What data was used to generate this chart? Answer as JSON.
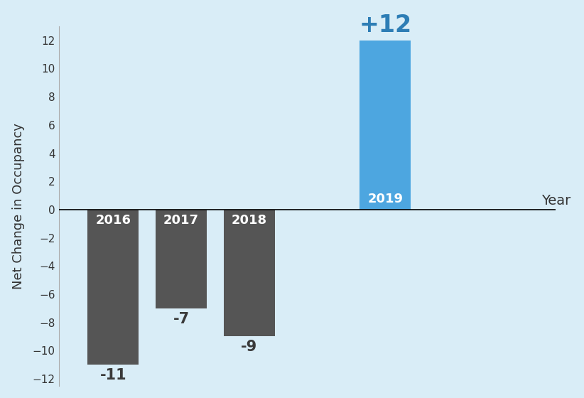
{
  "categories": [
    "2016",
    "2017",
    "2018",
    "2019"
  ],
  "values": [
    -11,
    -7,
    -9,
    12
  ],
  "bar_colors": [
    "#555555",
    "#555555",
    "#555555",
    "#4da6e0"
  ],
  "background_color": "#d9edf7",
  "ylabel": "Net Change in Occupancy",
  "xlabel": "Year",
  "ylim": [
    -12.5,
    13
  ],
  "yticks": [
    -12,
    -10,
    -8,
    -6,
    -4,
    -2,
    0,
    2,
    4,
    6,
    8,
    10,
    12
  ],
  "bar_labels": [
    "-11",
    "-7",
    "-9",
    "+12"
  ],
  "positive_label_color": "#2d7db5",
  "negative_label_color": "#3a3a3a",
  "value_label_fontsize_large": 24,
  "value_label_fontsize_small": 15,
  "year_label_fontsize": 13,
  "axis_label_fontsize": 13,
  "bar_positions": [
    1,
    2,
    3,
    5
  ],
  "bar_width": 0.75,
  "xlim": [
    0.2,
    7.5
  ]
}
